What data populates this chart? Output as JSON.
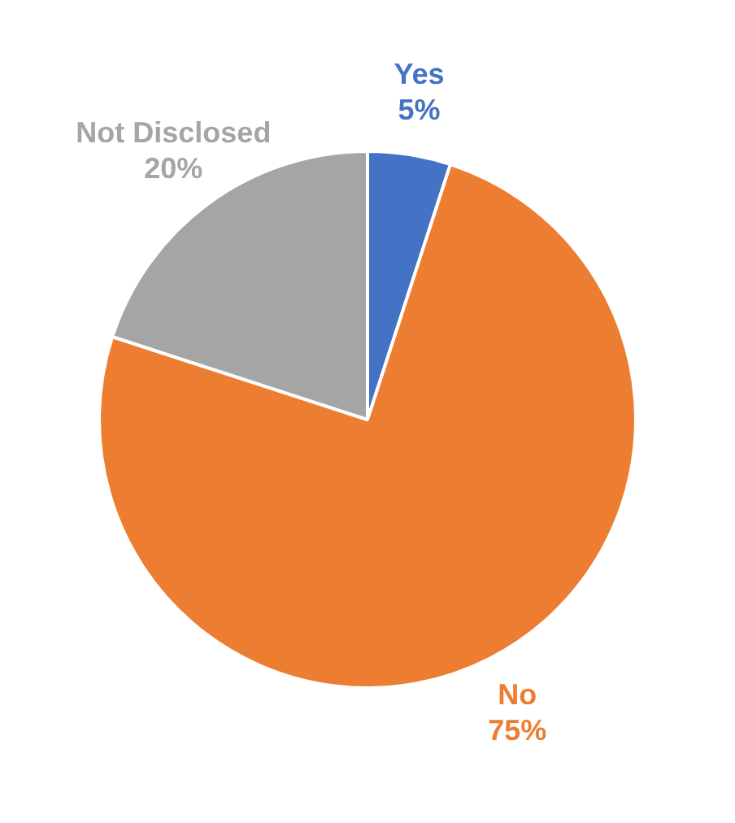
{
  "chart_data": {
    "type": "pie",
    "categories": [
      "Yes",
      "No",
      "Not Disclosed"
    ],
    "values": [
      5,
      75,
      20
    ],
    "colors": [
      "#4472c4",
      "#ed7d31",
      "#a5a5a5"
    ],
    "value_labels": [
      "5%",
      "75%",
      "20%"
    ],
    "legend": false
  }
}
